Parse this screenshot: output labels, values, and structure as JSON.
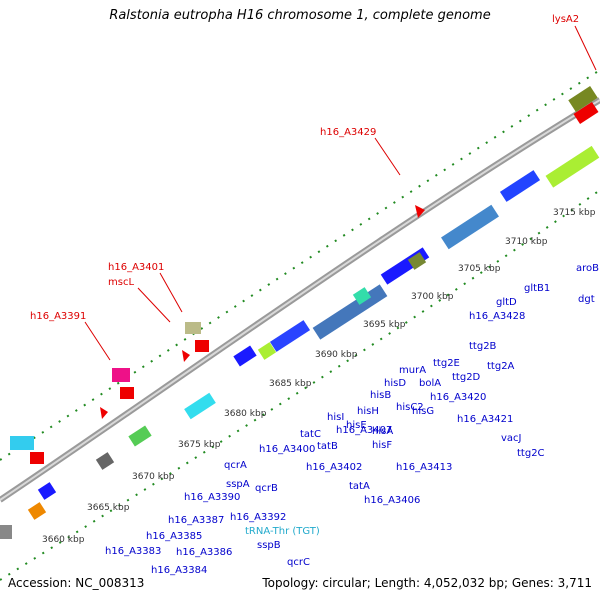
{
  "title": "Ralstonia eutropha H16 chromosome 1, complete genome",
  "footer": {
    "accession": "Accession: NC_008313",
    "summary": "Topology: circular; Length: 4,052,032 bp; Genes: 3,711"
  },
  "colors": {
    "blue_label": "#0000cc",
    "red_label": "#dd0000",
    "cyan_label": "#22aacc",
    "backbone": "#888888",
    "tick_green": "#228b22"
  },
  "scale_labels": [
    "3660 kbp",
    "3665 kbp",
    "3670 kbp",
    "3675 kbp",
    "3680 kbp",
    "3685 kbp",
    "3690 kbp",
    "3695 kbp",
    "3700 kbp",
    "3705 kbp",
    "3710 kbp",
    "3715 kbp"
  ],
  "forward_labels": [
    "lysA2",
    "h16_A3429",
    "h16_A3401",
    "mscL",
    "h16_A3391"
  ],
  "reverse_labels": [
    "aroB",
    "dgt",
    "gltB1",
    "gltD",
    "h16_A3428",
    "ttg2B",
    "ttg2A",
    "ttg2E",
    "ttg2D",
    "murA",
    "bolA",
    "hisD",
    "hisC2",
    "hisG",
    "h16_A3420",
    "h16_A3421",
    "vacJ",
    "ttg2C",
    "hisB",
    "hisH",
    "hisI",
    "hisE",
    "hisA",
    "hisF",
    "h16_A3407",
    "h16_A3413",
    "h16_A3406",
    "tatC",
    "tatB",
    "tatA",
    "h16_A3402",
    "h16_A3400",
    "qcrA",
    "qcrB",
    "qcrC",
    "sspA",
    "sspB",
    "h16_A3392",
    "tRNA-Thr (TGT)",
    "h16_A3390",
    "h16_A3387",
    "h16_A3385",
    "h16_A3386",
    "h16_A3383",
    "h16_A3384"
  ]
}
